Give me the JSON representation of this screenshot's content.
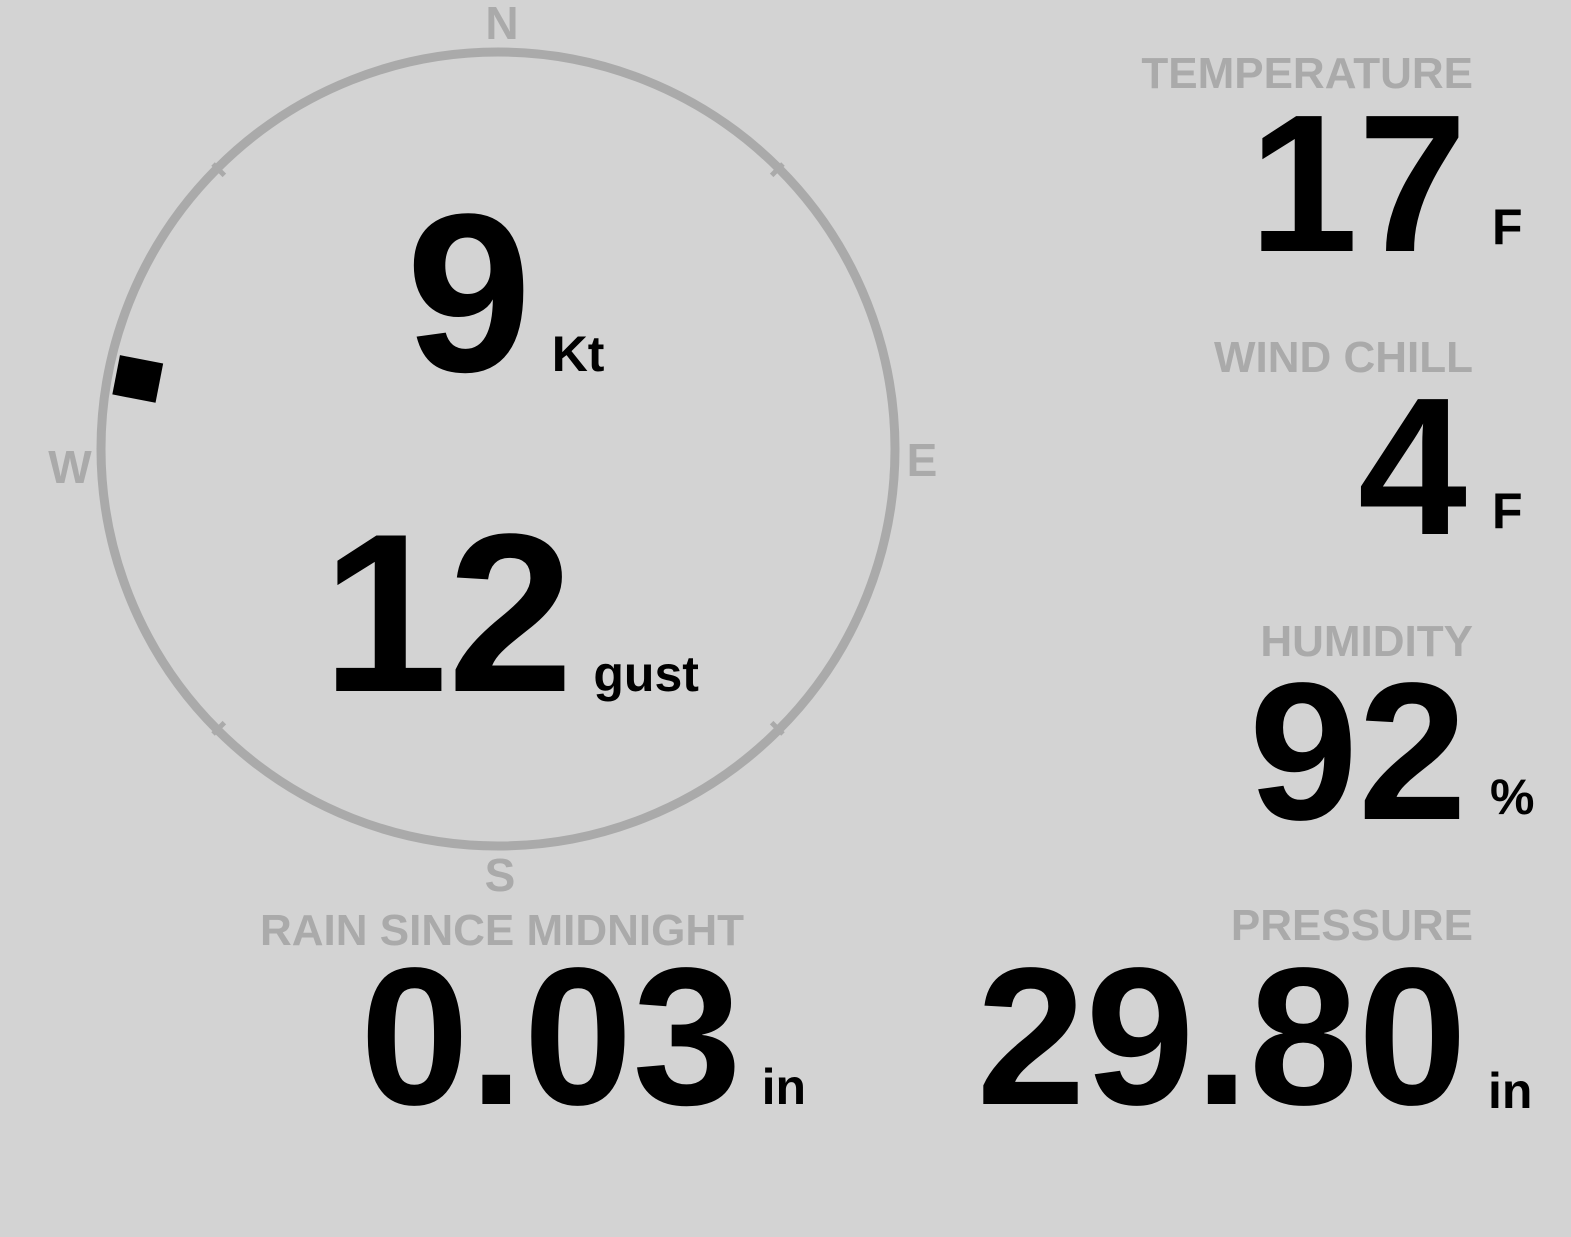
{
  "wind": {
    "speed": "9",
    "speed_unit": "Kt",
    "gust": "12",
    "gust_unit": "gust",
    "direction_deg": 281,
    "compass": {
      "n": "N",
      "e": "E",
      "s": "S",
      "w": "W"
    }
  },
  "temperature": {
    "label": "TEMPERATURE",
    "value": "17",
    "unit": "F"
  },
  "wind_chill": {
    "label": "WIND CHILL",
    "value": "4",
    "unit": "F"
  },
  "humidity": {
    "label": "HUMIDITY",
    "value": "92",
    "unit": "%"
  },
  "rain": {
    "label": "RAIN SINCE MIDNIGHT",
    "value": "0.03",
    "unit": "in"
  },
  "pressure": {
    "label": "PRESSURE",
    "value": "29.80",
    "unit": "in"
  },
  "colors": {
    "background": "#d3d3d3",
    "dim": "#aaaaaa",
    "value": "#000000"
  }
}
